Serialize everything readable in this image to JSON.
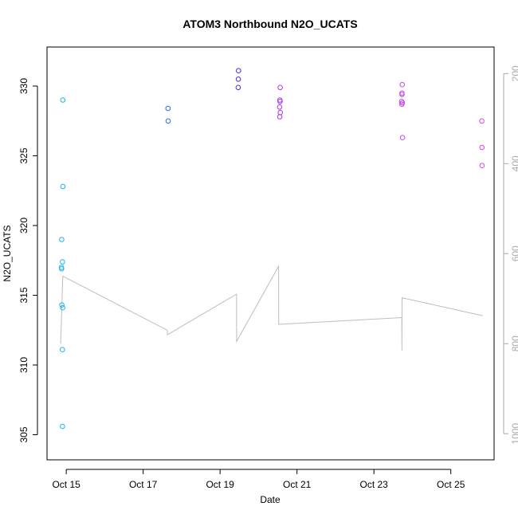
{
  "chart_data": {
    "type": "scatter",
    "title": "ATOM3 Northbound N2O_UCATS",
    "xlabel": "Date",
    "ylabel": "N2O_UCATS",
    "x_ticks": [
      "Oct 15",
      "Oct 17",
      "Oct 19",
      "Oct 21",
      "Oct 23",
      "Oct 25"
    ],
    "y_ticks": [
      "305",
      "310",
      "315",
      "320",
      "325",
      "330"
    ],
    "y2_ticks": [
      "200",
      "400",
      "600",
      "800",
      "1000"
    ],
    "xlim": [
      "2017-10-14T12:00",
      "2017-10-26T03:00"
    ],
    "ylim": [
      303.2,
      332.8
    ],
    "y2lim": [
      1058,
      141
    ],
    "y2_reversed": true,
    "grid": false,
    "colors": {
      "cyan": "#1fb4f0",
      "blue": "#3366e8",
      "indigo": "#4a2ae8",
      "purple": "#a63ae8",
      "violet": "#c24ae8",
      "magenta": "#d84ae8",
      "pressure": "#bebebe"
    },
    "points": [
      {
        "x": "2017-10-14T21:50",
        "y": 329.0,
        "color": "cyan"
      },
      {
        "x": "2017-10-14T21:55",
        "y": 322.8,
        "color": "cyan"
      },
      {
        "x": "2017-10-14T21:10",
        "y": 319.0,
        "color": "cyan"
      },
      {
        "x": "2017-10-14T21:40",
        "y": 317.4,
        "color": "cyan"
      },
      {
        "x": "2017-10-14T21:00",
        "y": 317.0,
        "color": "cyan"
      },
      {
        "x": "2017-10-14T21:05",
        "y": 316.9,
        "color": "cyan"
      },
      {
        "x": "2017-10-14T21:15",
        "y": 314.3,
        "color": "cyan"
      },
      {
        "x": "2017-10-14T21:45",
        "y": 314.1,
        "color": "cyan"
      },
      {
        "x": "2017-10-14T21:35",
        "y": 311.1,
        "color": "cyan"
      },
      {
        "x": "2017-10-14T21:40",
        "y": 305.6,
        "color": "cyan"
      },
      {
        "x": "2017-10-17T15:30",
        "y": 328.4,
        "color": "blue"
      },
      {
        "x": "2017-10-17T15:35",
        "y": 327.5,
        "color": "blue"
      },
      {
        "x": "2017-10-19T11:30",
        "y": 331.1,
        "color": "indigo"
      },
      {
        "x": "2017-10-19T11:25",
        "y": 330.5,
        "color": "indigo"
      },
      {
        "x": "2017-10-19T11:20",
        "y": 329.9,
        "color": "indigo"
      },
      {
        "x": "2017-10-20T13:30",
        "y": 329.9,
        "color": "purple"
      },
      {
        "x": "2017-10-20T13:20",
        "y": 329.0,
        "color": "purple"
      },
      {
        "x": "2017-10-20T13:25",
        "y": 328.9,
        "color": "purple"
      },
      {
        "x": "2017-10-20T13:10",
        "y": 328.5,
        "color": "purple"
      },
      {
        "x": "2017-10-20T13:35",
        "y": 328.1,
        "color": "purple"
      },
      {
        "x": "2017-10-20T13:15",
        "y": 327.8,
        "color": "purple"
      },
      {
        "x": "2017-10-23T17:40",
        "y": 330.1,
        "color": "violet"
      },
      {
        "x": "2017-10-23T17:30",
        "y": 329.5,
        "color": "violet"
      },
      {
        "x": "2017-10-23T17:35",
        "y": 329.4,
        "color": "violet"
      },
      {
        "x": "2017-10-23T17:20",
        "y": 328.9,
        "color": "violet"
      },
      {
        "x": "2017-10-23T17:25",
        "y": 328.7,
        "color": "violet"
      },
      {
        "x": "2017-10-23T17:45",
        "y": 328.8,
        "color": "violet"
      },
      {
        "x": "2017-10-23T17:50",
        "y": 326.3,
        "color": "violet"
      },
      {
        "x": "2017-10-25T19:20",
        "y": 327.5,
        "color": "magenta"
      },
      {
        "x": "2017-10-25T19:25",
        "y": 325.6,
        "color": "magenta"
      },
      {
        "x": "2017-10-25T19:30",
        "y": 324.3,
        "color": "magenta"
      }
    ],
    "pressure_line": [
      {
        "x": "2017-10-14T20:30",
        "y2": 800
      },
      {
        "x": "2017-10-14T21:50",
        "y2": 650
      },
      {
        "x": "2017-10-17T15:00",
        "y2": 770
      },
      {
        "x": "2017-10-17T15:10",
        "y2": 780
      },
      {
        "x": "2017-10-19T10:15",
        "y2": 690
      },
      {
        "x": "2017-10-19T10:20",
        "y2": 795
      },
      {
        "x": "2017-10-20T12:30",
        "y2": 628
      },
      {
        "x": "2017-10-20T12:35",
        "y2": 757
      },
      {
        "x": "2017-10-23T17:25",
        "y2": 742
      },
      {
        "x": "2017-10-23T17:30",
        "y2": 815
      },
      {
        "x": "2017-10-23T17:35",
        "y2": 698
      },
      {
        "x": "2017-10-25T20:00",
        "y2": 738
      }
    ]
  }
}
